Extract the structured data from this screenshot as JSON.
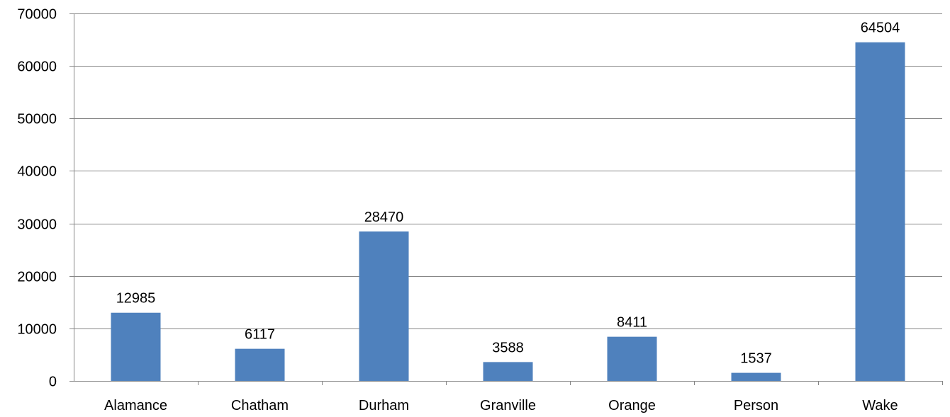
{
  "chart_data": {
    "type": "bar",
    "title": "",
    "xlabel": "",
    "ylabel": "",
    "categories": [
      "Alamance",
      "Chatham",
      "Durham",
      "Granville",
      "Orange",
      "Person",
      "Wake"
    ],
    "values": [
      12985,
      6117,
      28470,
      3588,
      8411,
      1537,
      64504
    ],
    "data_labels": [
      "12985",
      "6117",
      "28470",
      "3588",
      "8411",
      "1537",
      "64504"
    ],
    "ylim": [
      0,
      70000
    ],
    "yticks": [
      0,
      10000,
      20000,
      30000,
      40000,
      50000,
      60000,
      70000
    ],
    "ytick_labels": [
      "0",
      "10000",
      "20000",
      "30000",
      "40000",
      "50000",
      "60000",
      "70000"
    ],
    "grid": true,
    "legend": "none",
    "colors": {
      "bar": "#4F81BD",
      "grid": "#868686",
      "axis": "#868686",
      "text": "#000000"
    }
  }
}
